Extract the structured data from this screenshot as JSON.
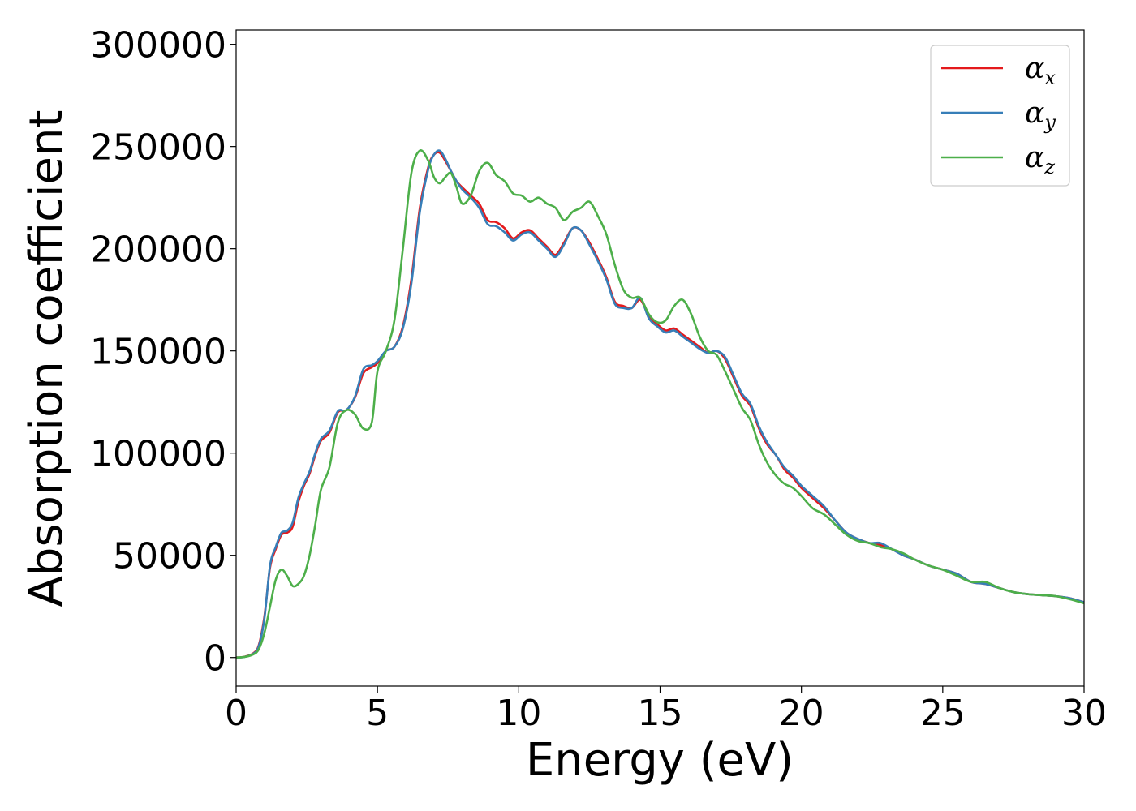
{
  "chart_data": {
    "type": "line",
    "title": "",
    "xlabel": "Energy (eV)",
    "ylabel": "Absorption coefficient",
    "xlim": [
      0,
      30
    ],
    "ylim": [
      -14000,
      307000
    ],
    "xticks": [
      0,
      5,
      10,
      15,
      20,
      25,
      30
    ],
    "yticks": [
      0,
      50000,
      100000,
      150000,
      200000,
      250000,
      300000
    ],
    "grid": false,
    "legend_position": "top-right",
    "series": [
      {
        "name": "α",
        "subscript": "x",
        "color": "#e41a1c",
        "x": [
          0,
          0.3,
          0.6,
          0.8,
          1.0,
          1.2,
          1.4,
          1.6,
          1.8,
          2.0,
          2.2,
          2.4,
          2.6,
          2.8,
          3.0,
          3.3,
          3.6,
          3.9,
          4.2,
          4.5,
          4.8,
          5.0,
          5.3,
          5.6,
          5.9,
          6.2,
          6.5,
          6.8,
          7.0,
          7.2,
          7.4,
          7.6,
          7.8,
          8.0,
          8.3,
          8.6,
          8.9,
          9.2,
          9.5,
          9.8,
          10.1,
          10.4,
          10.7,
          11.0,
          11.3,
          11.6,
          11.9,
          12.2,
          12.5,
          12.8,
          13.1,
          13.4,
          13.7,
          14.0,
          14.3,
          14.6,
          14.9,
          15.2,
          15.5,
          15.8,
          16.1,
          16.4,
          16.7,
          17.0,
          17.3,
          17.6,
          17.9,
          18.2,
          18.5,
          18.8,
          19.1,
          19.4,
          19.7,
          20.0,
          20.4,
          20.8,
          21.2,
          21.6,
          22.0,
          22.4,
          22.8,
          23.2,
          23.6,
          24.0,
          24.5,
          25.0,
          25.5,
          26.0,
          26.5,
          27.0,
          27.5,
          28.0,
          28.5,
          29.0,
          29.5,
          30.0
        ],
        "y": [
          0,
          400,
          2000,
          6000,
          20000,
          44000,
          53000,
          60000,
          61000,
          64000,
          76000,
          84000,
          90000,
          99000,
          106000,
          110000,
          120000,
          121000,
          127000,
          139000,
          142000,
          144000,
          150000,
          152000,
          162000,
          185000,
          220000,
          240000,
          246000,
          247000,
          243000,
          238000,
          233000,
          230000,
          226000,
          222000,
          214000,
          213000,
          210000,
          205000,
          208000,
          209000,
          205000,
          201000,
          197000,
          203000,
          210000,
          209000,
          203000,
          195000,
          186000,
          174000,
          172000,
          171000,
          175000,
          167000,
          163000,
          160000,
          161000,
          158000,
          155000,
          152000,
          149000,
          150000,
          146000,
          137000,
          128000,
          123000,
          112000,
          104000,
          99000,
          92000,
          88000,
          83000,
          78000,
          73000,
          67000,
          61000,
          58000,
          56000,
          55000,
          53000,
          50000,
          48000,
          45000,
          43000,
          41000,
          37000,
          36000,
          34000,
          32000,
          31000,
          30500,
          30000,
          29000,
          27000
        ]
      },
      {
        "name": "α",
        "subscript": "y",
        "color": "#377eb8",
        "x": [
          0,
          0.3,
          0.6,
          0.8,
          1.0,
          1.2,
          1.4,
          1.6,
          1.8,
          2.0,
          2.2,
          2.4,
          2.6,
          2.8,
          3.0,
          3.3,
          3.6,
          3.9,
          4.2,
          4.5,
          4.8,
          5.0,
          5.3,
          5.6,
          5.9,
          6.2,
          6.5,
          6.8,
          7.0,
          7.2,
          7.4,
          7.6,
          7.8,
          8.0,
          8.3,
          8.6,
          8.9,
          9.2,
          9.5,
          9.8,
          10.1,
          10.4,
          10.7,
          11.0,
          11.3,
          11.6,
          11.9,
          12.2,
          12.5,
          12.8,
          13.1,
          13.4,
          13.7,
          14.0,
          14.3,
          14.6,
          14.9,
          15.2,
          15.5,
          15.8,
          16.1,
          16.4,
          16.7,
          17.0,
          17.3,
          17.6,
          17.9,
          18.2,
          18.5,
          18.8,
          19.1,
          19.4,
          19.7,
          20.0,
          20.4,
          20.8,
          21.2,
          21.6,
          22.0,
          22.4,
          22.8,
          23.2,
          23.6,
          24.0,
          24.5,
          25.0,
          25.5,
          26.0,
          26.5,
          27.0,
          27.5,
          28.0,
          28.5,
          29.0,
          29.5,
          30.0
        ],
        "y": [
          0,
          300,
          1800,
          5500,
          19000,
          45000,
          54000,
          61000,
          62000,
          66000,
          78000,
          85000,
          91000,
          100000,
          107000,
          111000,
          120500,
          121000,
          127500,
          141000,
          143000,
          145000,
          150000,
          152000,
          161000,
          183000,
          218000,
          239000,
          246000,
          248000,
          244000,
          238000,
          233000,
          229000,
          225000,
          220000,
          212000,
          211000,
          208000,
          204000,
          207000,
          208000,
          204000,
          200000,
          196000,
          202000,
          210000,
          209000,
          202000,
          194000,
          185000,
          173000,
          171000,
          171000,
          176000,
          166000,
          162000,
          159000,
          160000,
          157000,
          154000,
          151000,
          149000,
          150000,
          147000,
          138000,
          129000,
          124000,
          113000,
          105000,
          99000,
          93000,
          89000,
          84000,
          79000,
          74000,
          67000,
          61000,
          58000,
          56000,
          56000,
          53000,
          50000,
          48000,
          45000,
          43000,
          41000,
          37000,
          36000,
          34000,
          32000,
          31000,
          30500,
          30000,
          29000,
          27000
        ]
      },
      {
        "name": "α",
        "subscript": "z",
        "color": "#4daf4a",
        "x": [
          0,
          0.3,
          0.6,
          0.8,
          1.0,
          1.2,
          1.4,
          1.6,
          1.8,
          2.0,
          2.2,
          2.4,
          2.6,
          2.8,
          3.0,
          3.3,
          3.6,
          3.9,
          4.2,
          4.5,
          4.8,
          5.0,
          5.3,
          5.6,
          5.9,
          6.2,
          6.5,
          6.8,
          7.0,
          7.2,
          7.4,
          7.6,
          7.8,
          8.0,
          8.3,
          8.6,
          8.9,
          9.2,
          9.5,
          9.8,
          10.1,
          10.4,
          10.7,
          11.0,
          11.3,
          11.6,
          11.9,
          12.2,
          12.5,
          12.8,
          13.1,
          13.4,
          13.7,
          14.0,
          14.3,
          14.6,
          14.9,
          15.2,
          15.5,
          15.8,
          16.1,
          16.4,
          16.7,
          17.0,
          17.3,
          17.6,
          17.9,
          18.2,
          18.5,
          18.8,
          19.1,
          19.4,
          19.7,
          20.0,
          20.4,
          20.8,
          21.2,
          21.6,
          22.0,
          22.4,
          22.8,
          23.2,
          23.6,
          24.0,
          24.5,
          25.0,
          25.5,
          26.0,
          26.5,
          27.0,
          27.5,
          28.0,
          28.5,
          29.0,
          29.5,
          30.0
        ],
        "y": [
          0,
          300,
          1500,
          4000,
          12000,
          25000,
          38000,
          43000,
          40000,
          35000,
          36000,
          40000,
          50000,
          65000,
          82000,
          93000,
          115000,
          121000,
          119000,
          112000,
          115000,
          140000,
          150000,
          165000,
          200000,
          237000,
          248000,
          243000,
          235000,
          232000,
          235000,
          237000,
          230000,
          222000,
          226000,
          238000,
          242000,
          236000,
          233000,
          227000,
          226000,
          223000,
          225000,
          222000,
          220000,
          214000,
          218000,
          220000,
          223000,
          216000,
          207000,
          192000,
          180000,
          176000,
          176000,
          168000,
          164000,
          165000,
          172000,
          175000,
          168000,
          157000,
          150000,
          148000,
          140000,
          131000,
          122000,
          116000,
          104000,
          95000,
          89000,
          85000,
          83000,
          79000,
          73000,
          70000,
          65000,
          60000,
          57000,
          56000,
          54000,
          53000,
          51000,
          48000,
          45000,
          43000,
          40000,
          37000,
          37000,
          34000,
          32000,
          31000,
          30500,
          30000,
          28500,
          26500
        ]
      }
    ]
  }
}
